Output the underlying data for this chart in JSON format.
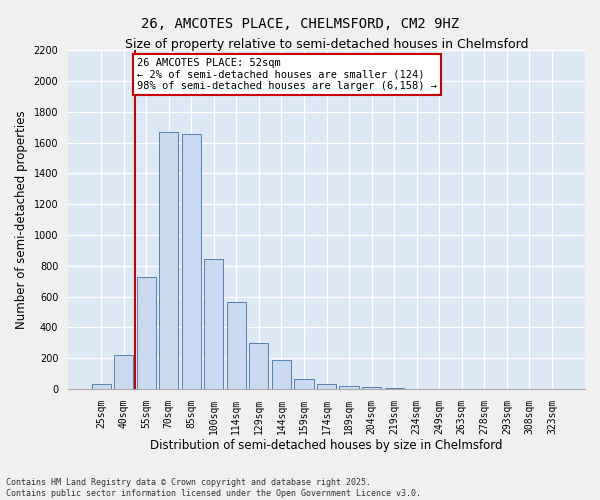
{
  "title": "26, AMCOTES PLACE, CHELMSFORD, CM2 9HZ",
  "subtitle": "Size of property relative to semi-detached houses in Chelmsford",
  "xlabel": "Distribution of semi-detached houses by size in Chelmsford",
  "ylabel": "Number of semi-detached properties",
  "categories": [
    "25sqm",
    "40sqm",
    "55sqm",
    "70sqm",
    "85sqm",
    "100sqm",
    "114sqm",
    "129sqm",
    "144sqm",
    "159sqm",
    "174sqm",
    "189sqm",
    "204sqm",
    "219sqm",
    "234sqm",
    "249sqm",
    "263sqm",
    "278sqm",
    "293sqm",
    "308sqm",
    "323sqm"
  ],
  "values": [
    35,
    220,
    730,
    1670,
    1655,
    845,
    565,
    300,
    185,
    65,
    32,
    20,
    15,
    5,
    0,
    0,
    0,
    0,
    0,
    0,
    0
  ],
  "bar_color": "#c9d9f0",
  "bar_edge_color": "#5580b0",
  "annotation_title": "26 AMCOTES PLACE: 52sqm",
  "annotation_line1": "← 2% of semi-detached houses are smaller (124)",
  "annotation_line2": "98% of semi-detached houses are larger (6,158) →",
  "annotation_box_color": "#ffffff",
  "annotation_box_edge": "#cc0000",
  "vline_color": "#cc0000",
  "vline_x": 1.5,
  "ylim": [
    0,
    2200
  ],
  "yticks": [
    0,
    200,
    400,
    600,
    800,
    1000,
    1200,
    1400,
    1600,
    1800,
    2000,
    2200
  ],
  "plot_bg_color": "#dde8f5",
  "fig_bg_color": "#f0f0f0",
  "footer_line1": "Contains HM Land Registry data © Crown copyright and database right 2025.",
  "footer_line2": "Contains public sector information licensed under the Open Government Licence v3.0.",
  "title_fontsize": 10,
  "subtitle_fontsize": 9,
  "tick_fontsize": 7,
  "label_fontsize": 8.5,
  "annotation_fontsize": 7.5
}
